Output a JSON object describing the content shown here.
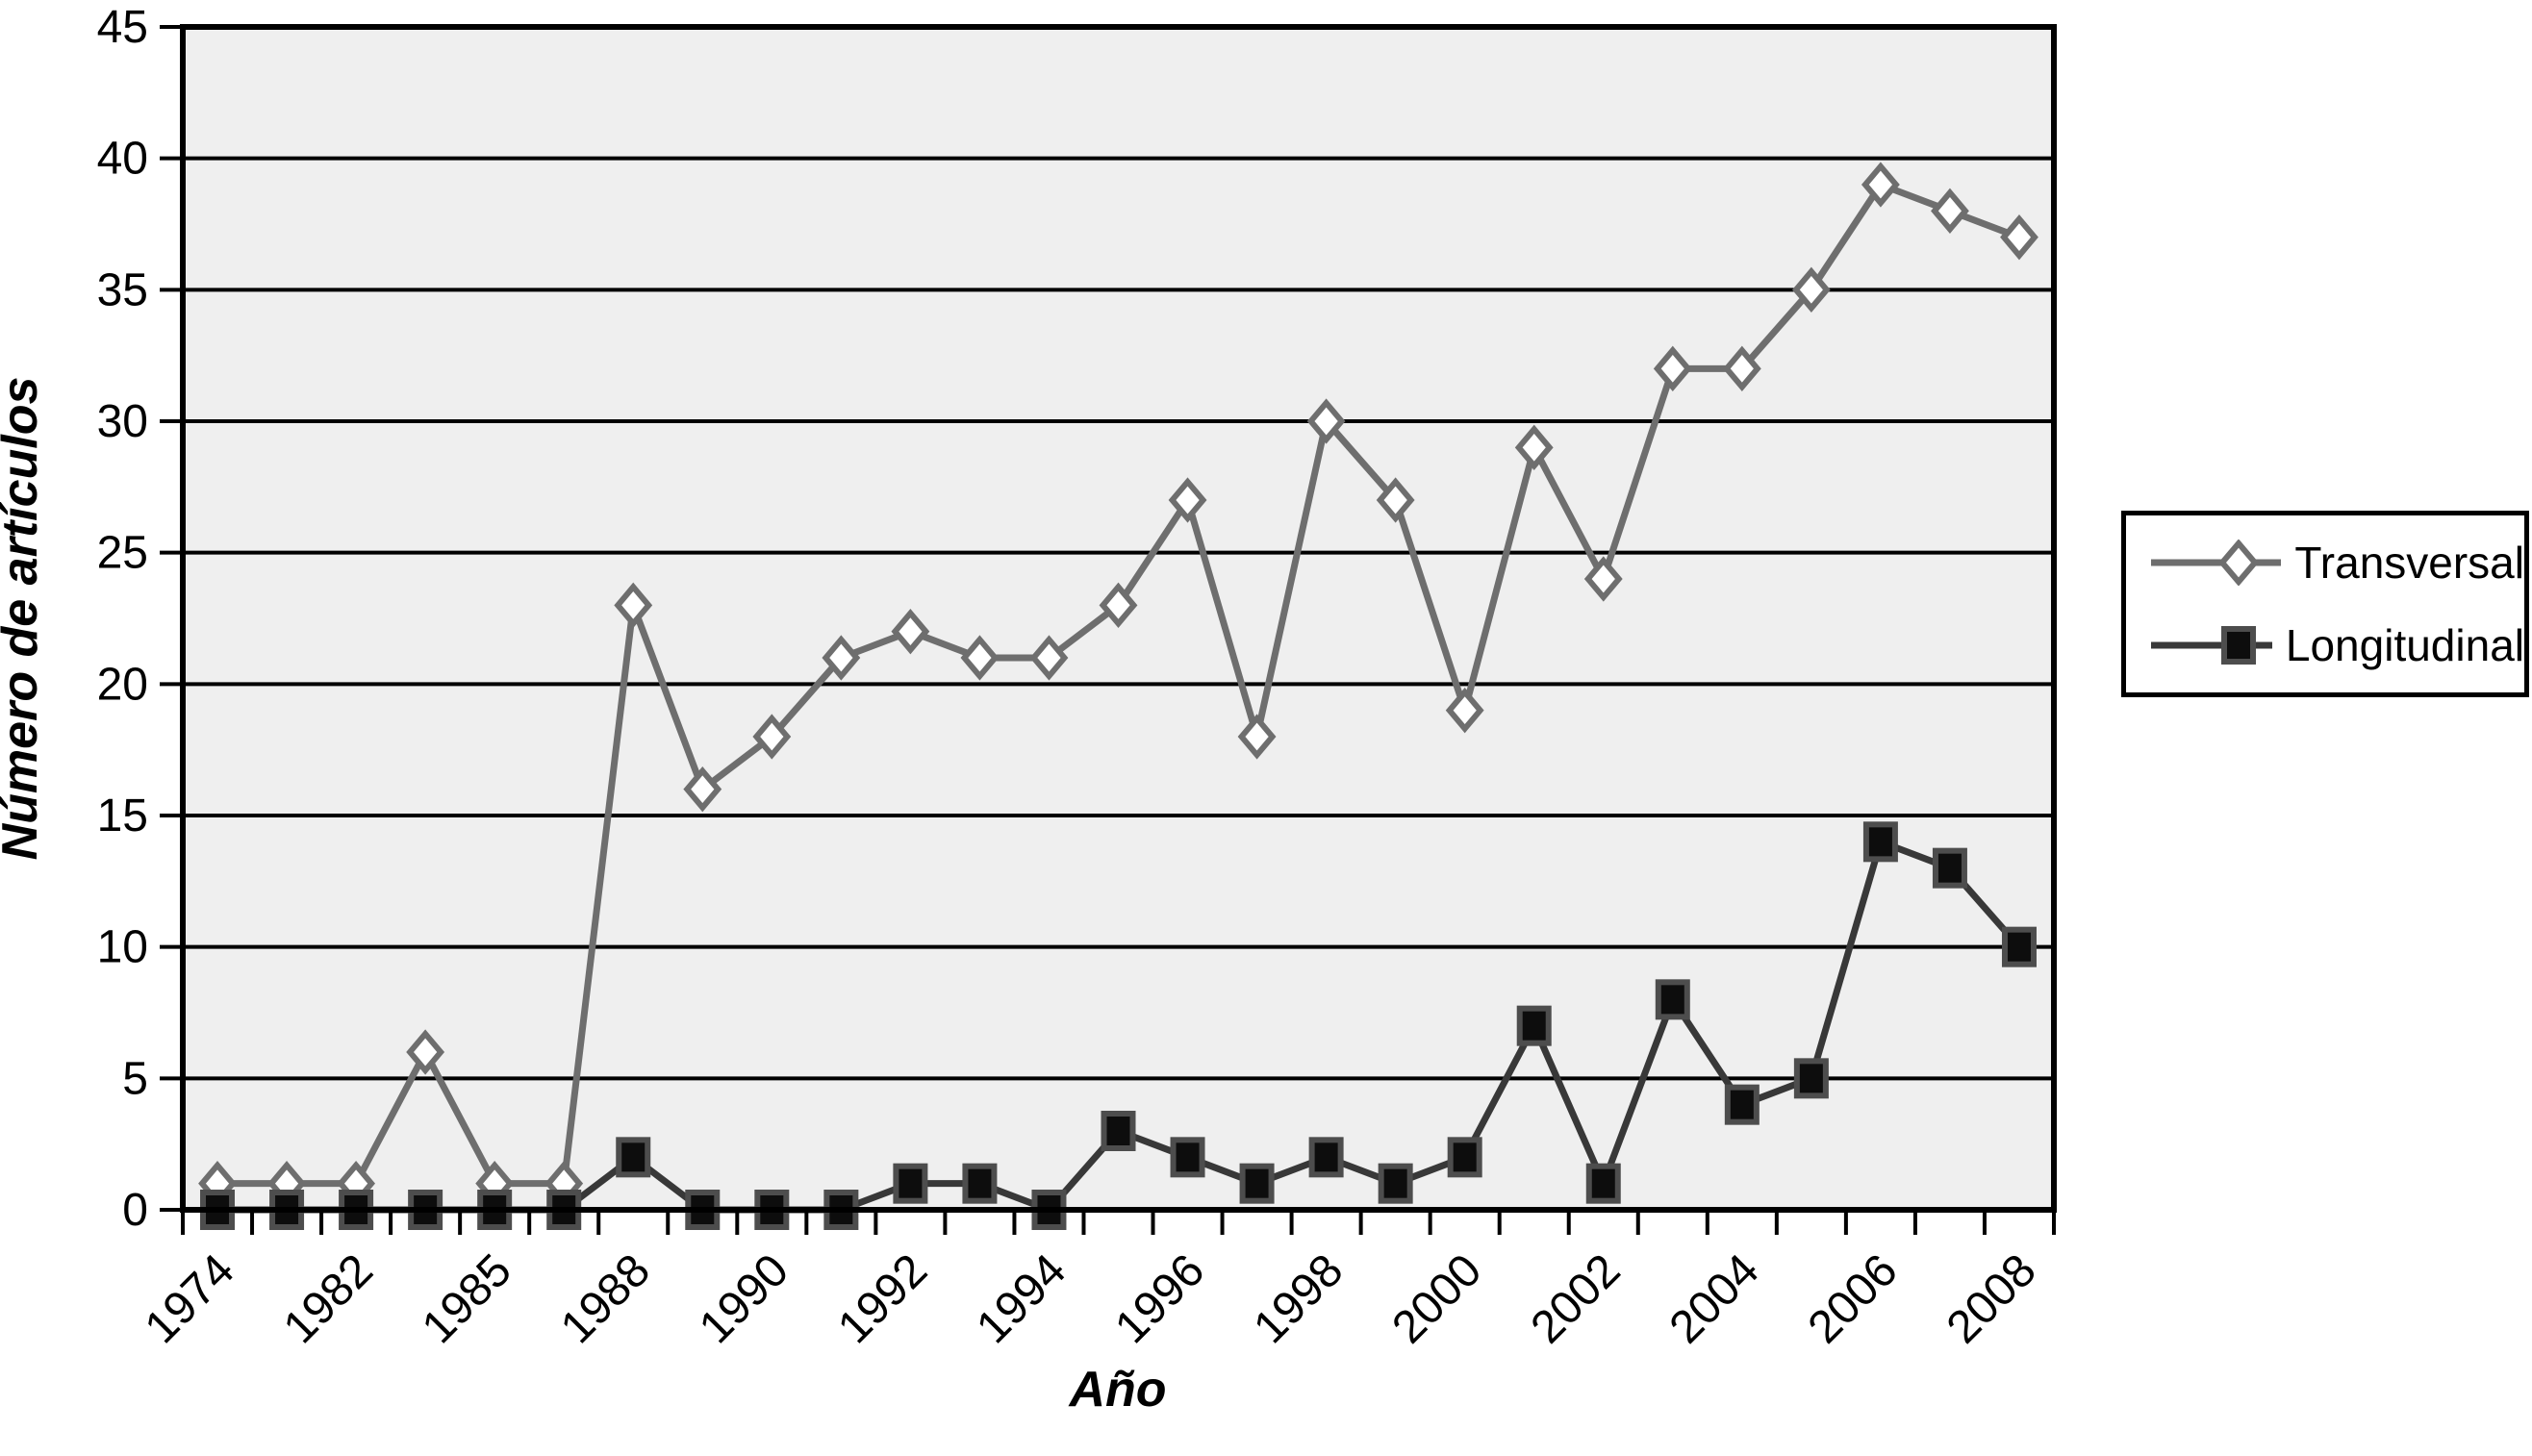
{
  "chart_data": {
    "type": "line",
    "title": "",
    "xlabel": "Año",
    "ylabel": "Número de artículos",
    "ylim": [
      0,
      45
    ],
    "ytick_step": 5,
    "y_tick_labels": [
      "0",
      "5",
      "10",
      "15",
      "20",
      "25",
      "30",
      "35",
      "40",
      "45"
    ],
    "grid": "horizontal-only",
    "legend_position": "right",
    "plot_bg_color": "#efefef",
    "grid_color": "#000000",
    "axis_color": "#000000",
    "categories": [
      "1974",
      "",
      "1982",
      "",
      "1985",
      "",
      "1988",
      "",
      "1990",
      "",
      "1992",
      "",
      "1994",
      "",
      "1996",
      "",
      "1998",
      "",
      "2000",
      "",
      "2002",
      "",
      "2004",
      "",
      "2006",
      "",
      "2008"
    ],
    "series": [
      {
        "name": "Transversal",
        "color": "#6e6e6e",
        "marker": "diamond",
        "marker_fill": "#ffffff",
        "marker_stroke": "#6e6e6e",
        "values": [
          1,
          1,
          1,
          6,
          1,
          1,
          23,
          16,
          18,
          21,
          22,
          21,
          21,
          23,
          27,
          18,
          30,
          27,
          19,
          29,
          24,
          32,
          32,
          35,
          39,
          38,
          37
        ]
      },
      {
        "name": "Longitudinal",
        "color": "#383838",
        "marker": "square",
        "marker_fill": "#0d0d0d",
        "marker_stroke": "#4d4d4d",
        "values": [
          0,
          0,
          0,
          0,
          0,
          0,
          2,
          0,
          0,
          0,
          1,
          1,
          0,
          3,
          2,
          1,
          2,
          1,
          2,
          7,
          1,
          8,
          4,
          5,
          14,
          13,
          10
        ]
      }
    ]
  },
  "legend": {
    "entries": [
      {
        "label": "Transversal"
      },
      {
        "label": "Longitudinal"
      }
    ]
  }
}
